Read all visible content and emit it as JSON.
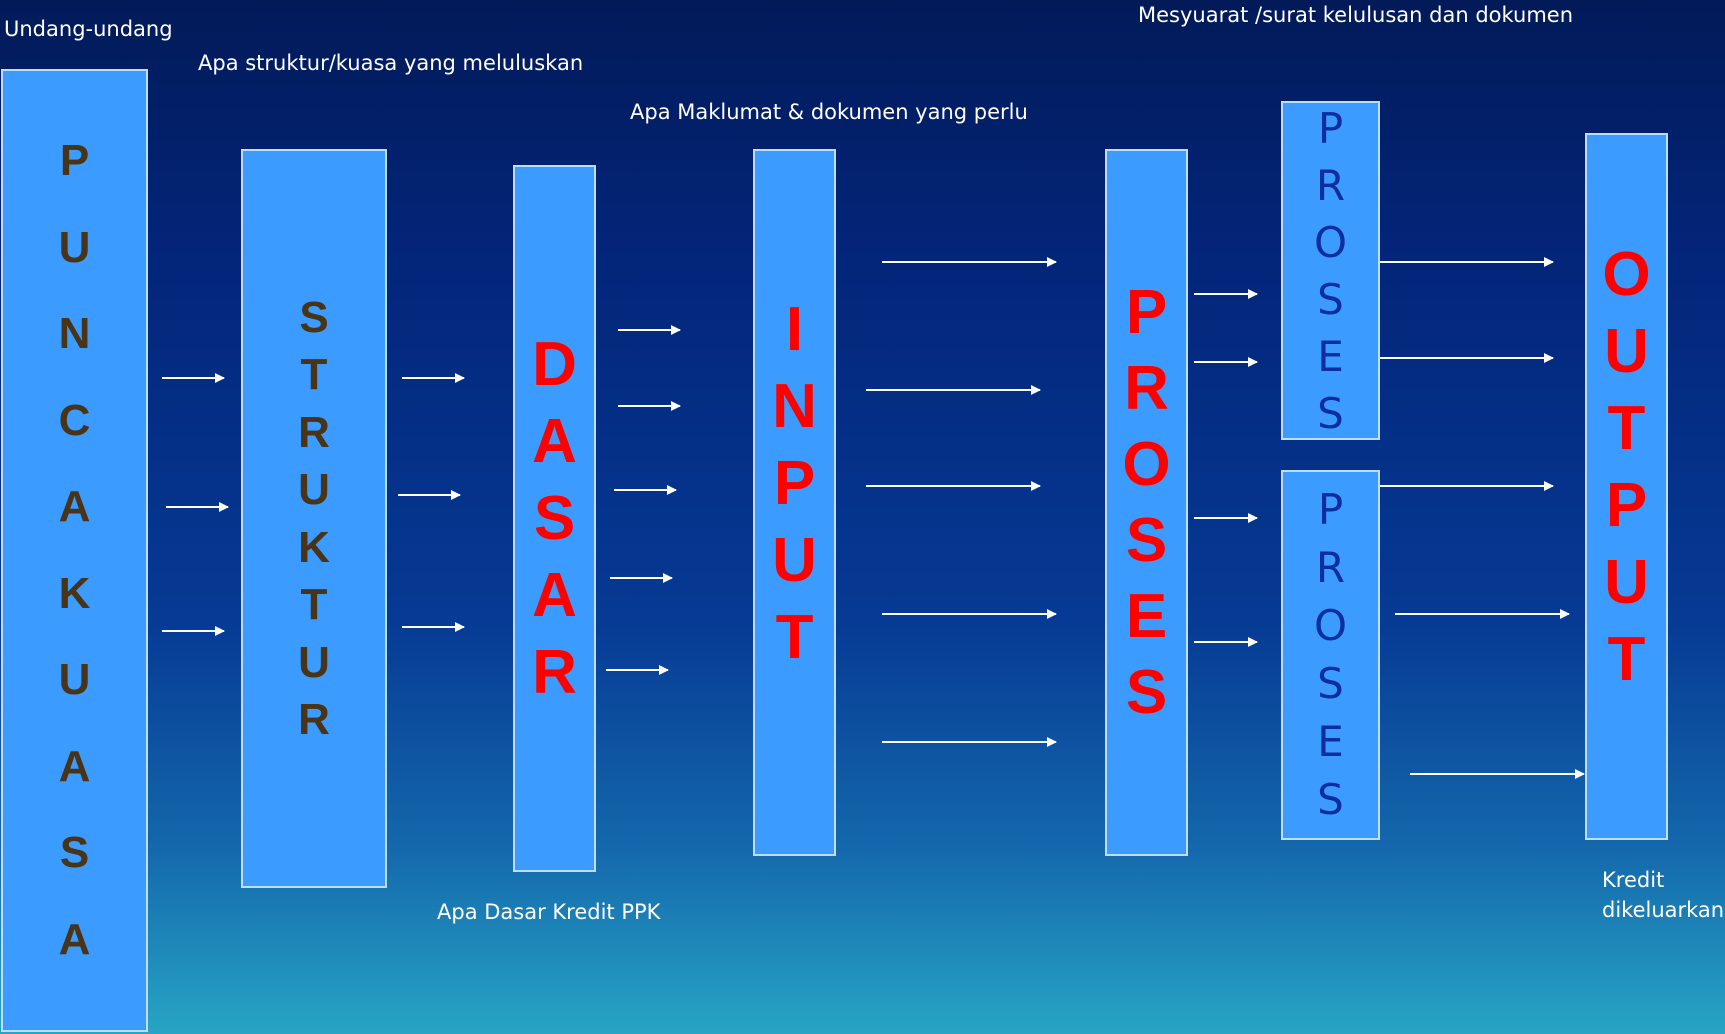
{
  "captions": {
    "undang": "Undang-undang",
    "struktur_q": "Apa struktur/kuasa yang meluluskan",
    "maklumat_q": "Apa Maklumat & dokumen yang perlu",
    "mesyuarat": "Mesyuarat /surat kelulusan dan dokumen",
    "dasar_q": "Apa Dasar Kredit PPK",
    "kredit_line1": "Kredit",
    "kredit_line2": "dikeluarkan"
  },
  "boxes": {
    "puncakuasa": [
      "P",
      "U",
      "N",
      "C",
      "A",
      "K",
      "U",
      "A",
      "S",
      "A"
    ],
    "struktur": [
      "S",
      "T",
      "R",
      "U",
      "K",
      "T",
      "U",
      "R"
    ],
    "dasar": [
      "D",
      "A",
      "S",
      "A",
      "R"
    ],
    "input": [
      "I",
      "N",
      "P",
      "U",
      "T"
    ],
    "proses_main": [
      "P",
      "R",
      "O",
      "S",
      "E",
      "S"
    ],
    "proses_upper": [
      "P",
      "R",
      "O",
      "S",
      "E",
      "S"
    ],
    "proses_lower": [
      "P",
      "R",
      "O",
      "S",
      "E",
      "S"
    ],
    "output": [
      "O",
      "U",
      "T",
      "P",
      "U",
      "T"
    ]
  },
  "colors": {
    "box_fill": "#3b9bff",
    "dark_letters": "#4a3417",
    "red_letters": "#ff0000",
    "blue_letters": "#0d2e9f",
    "arrow": "#ffffff"
  }
}
